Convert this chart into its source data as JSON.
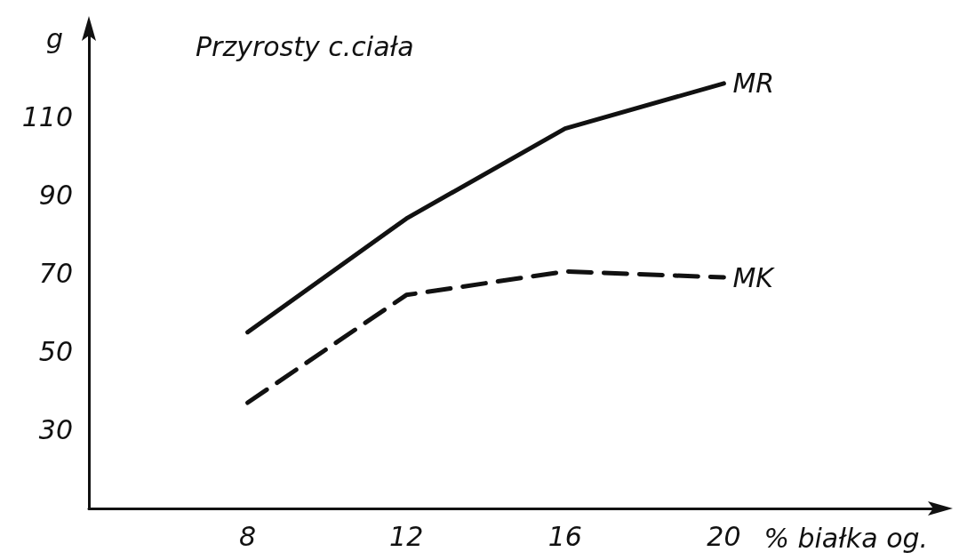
{
  "chart_data": {
    "type": "line",
    "title": "Przyrosty c.ciała",
    "xlabel": "% białka og.",
    "ylabel": "g",
    "x": [
      8,
      12,
      16,
      20
    ],
    "series": [
      {
        "name": "MR",
        "color": "#111111",
        "line_style": "solid",
        "values": [
          55,
          84,
          107,
          118.5
        ]
      },
      {
        "name": "MK",
        "color": "#111111",
        "line_style": "dashed",
        "values": [
          37,
          64.5,
          70.5,
          69
        ]
      }
    ],
    "xlim": [
      4,
      25.5
    ],
    "xticks": [
      8,
      12,
      16,
      20
    ],
    "ylim": [
      10,
      133
    ],
    "yticks": [
      30,
      50,
      70,
      90,
      110
    ],
    "grid": false,
    "legend": false,
    "marker": "none"
  }
}
